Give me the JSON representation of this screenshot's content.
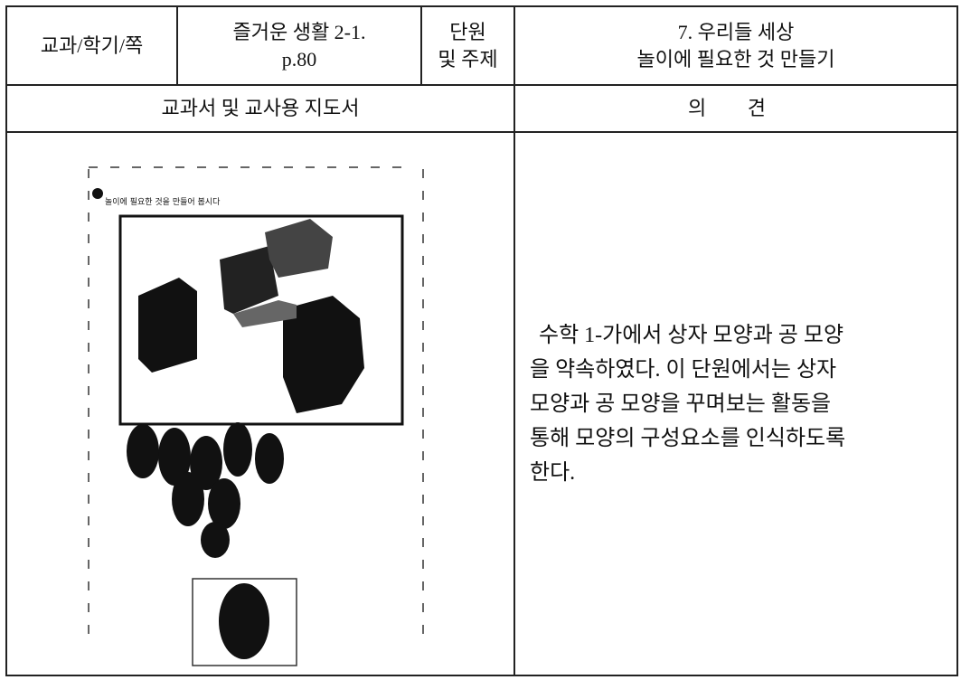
{
  "table": {
    "header": [
      [
        "교과/학기/쪽"
      ],
      [
        "즐거운 생활 2-1.",
        "p.80"
      ],
      [
        "단원",
        "및 주제"
      ],
      [
        "7. 우리들 세상",
        "놀이에 필요한 것 만들기"
      ]
    ],
    "subheader": [
      "교과서 및 교사용 지도서",
      "의 견"
    ],
    "textbook_image": {
      "caption": "놀이에 필요한 것을 만들어 봅시다"
    },
    "opinion": [
      "수학 1-가에서 상자 모양과 공 모양",
      "을 약속하였다. 이 단원에서는 상자",
      "모양과 공 모양을 꾸며보는 활동을",
      "통해 모양의 구성요소를 인식하도록",
      "한다."
    ]
  }
}
